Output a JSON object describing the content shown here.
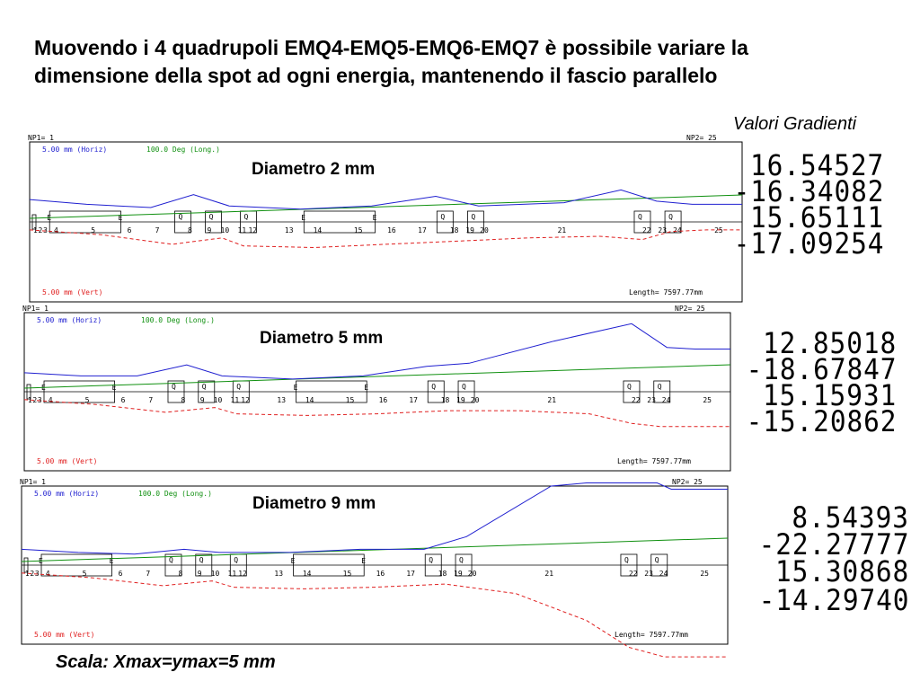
{
  "heading": "Muovendo i 4 quadrupoli EMQ4-EMQ5-EMQ6-EMQ7 è possibile variare la dimensione della spot ad ogni energia, mantenendo il fascio parallelo",
  "gradients_title": "Valori Gradienti",
  "footer": "Scala: Xmax=ymax=5 mm",
  "panels": [
    {
      "title": "Diametro 2 mm",
      "np1": "NP1=  1",
      "np2": "NP2=  25",
      "horiz": "5.00 mm (Horiz)",
      "long": "100.0 Deg (Long.)",
      "vert": "5.00 mm (Vert)",
      "length": "Length=  7597.77mm",
      "gradients": [
        "16.54527",
        "-16.34082",
        "15.65111",
        "-17.09254"
      ]
    },
    {
      "title": "Diametro 5 mm",
      "np1": "NP1=  1",
      "np2": "NP2=  25",
      "horiz": "5.00 mm (Horiz)",
      "long": "100.0 Deg (Long.)",
      "vert": "5.00 mm (Vert)",
      "length": "Length=  7597.77mm",
      "gradients": [
        "12.85018",
        "-18.67847",
        "15.15931",
        "-15.20862"
      ]
    },
    {
      "title": "Diametro 9 mm",
      "np1": "NP1=  1",
      "np2": "NP2=  25",
      "horiz": "5.00 mm (Horiz)",
      "long": "100.0 Deg (Long.)",
      "vert": "5.00 mm (Vert)",
      "length": "Length=  7597.77mm",
      "gradients": [
        "8.54393",
        "-22.27777",
        "15.30868",
        "-14.29740"
      ]
    }
  ],
  "element_labels": [
    "1",
    "2",
    "3",
    "4",
    "5",
    "6",
    "7",
    "8",
    "9",
    "10",
    "11",
    "12",
    "13",
    "14",
    "15",
    "16",
    "17",
    "18",
    "19",
    "20",
    "21",
    "22",
    "23",
    "24",
    "25"
  ],
  "element_types": [
    "Q",
    "E"
  ],
  "colors": {
    "horiz": "#2020d0",
    "long": "#109010",
    "vert": "#e02020",
    "frame": "#000000"
  }
}
